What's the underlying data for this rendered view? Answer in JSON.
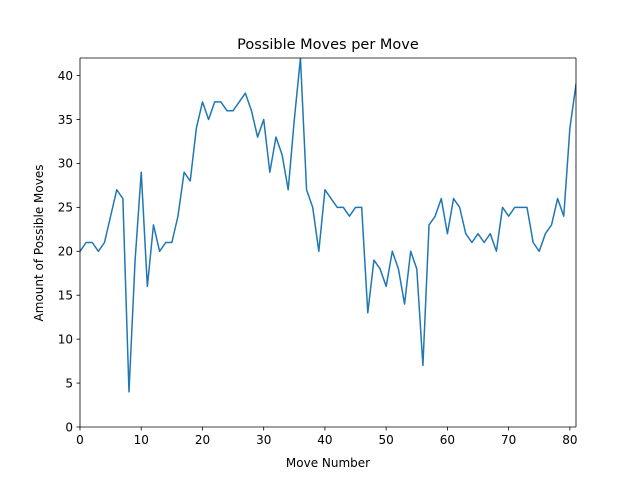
{
  "chart_data": {
    "type": "line",
    "title": "Possible Moves per Move",
    "xlabel": "Move Number",
    "ylabel": "Amount of Possible Moves",
    "xlim": [
      0,
      81
    ],
    "ylim": [
      0,
      42
    ],
    "xticks": [
      0,
      10,
      20,
      30,
      40,
      50,
      60,
      70,
      80
    ],
    "yticks": [
      0,
      5,
      10,
      15,
      20,
      25,
      30,
      35,
      40
    ],
    "grid": false,
    "color": "#1f77b4",
    "series": [
      {
        "x": [
          0,
          1,
          2,
          3,
          4,
          5,
          6,
          7,
          8,
          9,
          10,
          11,
          12,
          13,
          14,
          15,
          16,
          17,
          18,
          19,
          20,
          21,
          22,
          23,
          24,
          25,
          26,
          27,
          28,
          29,
          30,
          31,
          32,
          33,
          34,
          35,
          36,
          37,
          38,
          39,
          40,
          41,
          42,
          43,
          44,
          45,
          46,
          47,
          48,
          49,
          50,
          51,
          52,
          53,
          54,
          55,
          56,
          57,
          58,
          59,
          60,
          61,
          62,
          63,
          64,
          65,
          66,
          67,
          68,
          69,
          70,
          71,
          72,
          73,
          74,
          75,
          76,
          77,
          78,
          79,
          80,
          81
        ],
        "values": [
          20,
          21,
          21,
          20,
          21,
          24,
          27,
          26,
          4,
          19,
          29,
          16,
          23,
          20,
          21,
          21,
          24,
          29,
          28,
          34,
          37,
          35,
          37,
          37,
          36,
          36,
          37,
          38,
          36,
          33,
          35,
          29,
          33,
          31,
          27,
          35,
          42,
          27,
          25,
          20,
          27,
          26,
          25,
          25,
          24,
          25,
          25,
          13,
          19,
          18,
          16,
          20,
          18,
          14,
          20,
          18,
          7,
          23,
          24,
          26,
          22,
          26,
          25,
          22,
          21,
          22,
          21,
          22,
          20,
          25,
          24,
          25,
          25,
          25,
          21,
          20,
          22,
          23,
          26,
          24,
          34,
          39
        ]
      }
    ]
  }
}
